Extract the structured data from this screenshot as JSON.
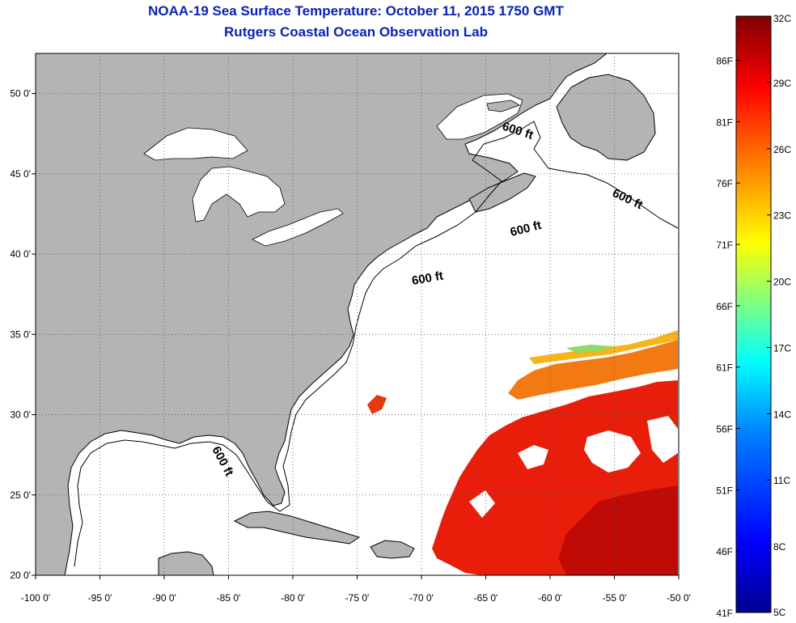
{
  "title": "NOAA-19 Sea Surface Temperature:  October 11, 2015 1750 GMT",
  "subtitle": "Rutgers Coastal Ocean Observation Lab",
  "map": {
    "lon_range": [
      -100,
      -50
    ],
    "lat_range": [
      20,
      52.5
    ],
    "grid": true,
    "x_ticks": [
      {
        "value": -100,
        "label": "-100 0'"
      },
      {
        "value": -95,
        "label": "-95 0'"
      },
      {
        "value": -90,
        "label": "-90 0'"
      },
      {
        "value": -85,
        "label": "-85 0'"
      },
      {
        "value": -80,
        "label": "-80 0'"
      },
      {
        "value": -75,
        "label": "-75 0'"
      },
      {
        "value": -70,
        "label": "-70 0'"
      },
      {
        "value": -65,
        "label": "-65 0'"
      },
      {
        "value": -60,
        "label": "-60 0'"
      },
      {
        "value": -55,
        "label": "-55 0'"
      },
      {
        "value": -50,
        "label": "-50 0'"
      }
    ],
    "y_ticks": [
      {
        "value": 20,
        "label": "20 0'"
      },
      {
        "value": 25,
        "label": "25 0'"
      },
      {
        "value": 30,
        "label": "30 0'"
      },
      {
        "value": 35,
        "label": "35 0'"
      },
      {
        "value": 40,
        "label": "40 0'"
      },
      {
        "value": 45,
        "label": "45 0'"
      },
      {
        "value": 50,
        "label": "50 0'"
      }
    ],
    "contour_labels": [
      "600 ft",
      "600 ft",
      "600 ft",
      "600 ft",
      "600 ft"
    ],
    "land_color": "#b4b4b4",
    "water_color": "#ffffff"
  },
  "colorbar": {
    "min_c": 5,
    "max_c": 32,
    "celsius_ticks": [
      {
        "value": 5,
        "label": "5C"
      },
      {
        "value": 8,
        "label": "8C"
      },
      {
        "value": 11,
        "label": "11C"
      },
      {
        "value": 14,
        "label": "14C"
      },
      {
        "value": 17,
        "label": "17C"
      },
      {
        "value": 20,
        "label": "20C"
      },
      {
        "value": 23,
        "label": "23C"
      },
      {
        "value": 26,
        "label": "26C"
      },
      {
        "value": 29,
        "label": "29C"
      },
      {
        "value": 32,
        "label": "32C"
      }
    ],
    "fahrenheit_ticks": [
      {
        "value": 41,
        "label": "41F"
      },
      {
        "value": 46,
        "label": "46F"
      },
      {
        "value": 51,
        "label": "51F"
      },
      {
        "value": 56,
        "label": "56F"
      },
      {
        "value": 61,
        "label": "61F"
      },
      {
        "value": 66,
        "label": "66F"
      },
      {
        "value": 71,
        "label": "71F"
      },
      {
        "value": 76,
        "label": "76F"
      },
      {
        "value": 81,
        "label": "81F"
      },
      {
        "value": 86,
        "label": "86F"
      }
    ],
    "colormap": [
      "#00008f",
      "#0000ff",
      "#0080ff",
      "#00ffff",
      "#80ff80",
      "#ffff00",
      "#ff8000",
      "#ff0000",
      "#800000"
    ]
  }
}
